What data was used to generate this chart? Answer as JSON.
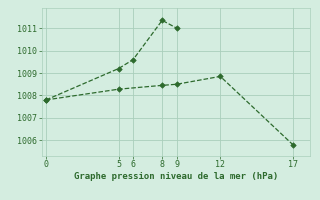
{
  "line1_x": [
    0,
    5,
    6,
    8,
    9
  ],
  "line1_y": [
    1007.8,
    1009.2,
    1009.6,
    1011.35,
    1011.0
  ],
  "line2_x": [
    0,
    5,
    8,
    9,
    12,
    17
  ],
  "line2_y": [
    1007.8,
    1008.28,
    1008.45,
    1008.5,
    1008.85,
    1005.8
  ],
  "line_color": "#2d6a2d",
  "bg_color": "#d4ede0",
  "grid_color": "#aacfbb",
  "xlabel": "Graphe pression niveau de la mer (hPa)",
  "xticks": [
    0,
    5,
    6,
    8,
    9,
    12,
    17
  ],
  "yticks": [
    1006,
    1007,
    1008,
    1009,
    1010,
    1011
  ],
  "ylim": [
    1005.3,
    1011.9
  ],
  "xlim": [
    -0.3,
    18.2
  ]
}
